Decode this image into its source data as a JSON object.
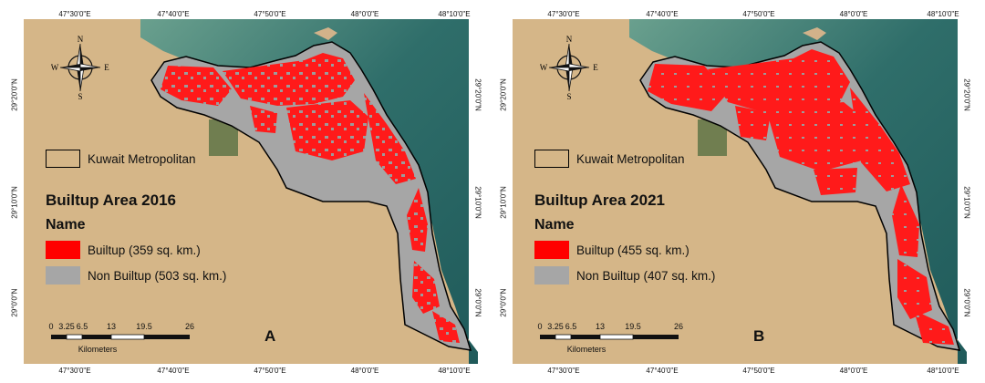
{
  "colors": {
    "builtup": "#ff0000",
    "non_builtup": "#a6a6a6",
    "desert": "#d4b486",
    "sea_deep": "#1f5a5a",
    "sea_shallow": "#6aa08e",
    "boundary": "#000000"
  },
  "graticule": {
    "top_ticks": [
      "47°30'0\"E",
      "47°40'0\"E",
      "47°50'0\"E",
      "48°0'0\"E",
      "48°10'0\"E"
    ],
    "bottom_ticks": [
      "47°30'0\"E",
      "47°40'0\"E",
      "47°50'0\"E",
      "48°0'0\"E",
      "48°10'0\"E"
    ],
    "left_ticks": [
      "29°20'0\"N",
      "29°10'0\"N",
      "29°0'0\"N"
    ],
    "right_ticks": [
      "29°20'0\"N",
      "29°10'0\"N",
      "29°0'0\"N"
    ]
  },
  "north_arrow": {
    "n": "N",
    "s": "S",
    "e": "E",
    "w": "W"
  },
  "scale_bar": {
    "labels": [
      "0",
      "3.25",
      "6.5",
      "13",
      "19.5",
      "26"
    ],
    "units": "Kilometers"
  },
  "panels": [
    {
      "letter": "A",
      "boundary_label": "Kuwait Metropolitan",
      "title": "Builtup Area  2016",
      "name_heading": "Name",
      "legend": [
        {
          "label": "Builtup (359 sq. km.)",
          "area_sq_km": 359,
          "class": "builtup"
        },
        {
          "label": "Non Builtup (503 sq. km.)",
          "area_sq_km": 503,
          "class": "non_builtup"
        }
      ]
    },
    {
      "letter": "B",
      "boundary_label": "Kuwait Metropolitan",
      "title": "Builtup Area  2021",
      "name_heading": "Name",
      "legend": [
        {
          "label": "Builtup (455 sq. km.)",
          "area_sq_km": 455,
          "class": "builtup"
        },
        {
          "label": "Non Builtup (407 sq. km.)",
          "area_sq_km": 407,
          "class": "non_builtup"
        }
      ]
    }
  ]
}
